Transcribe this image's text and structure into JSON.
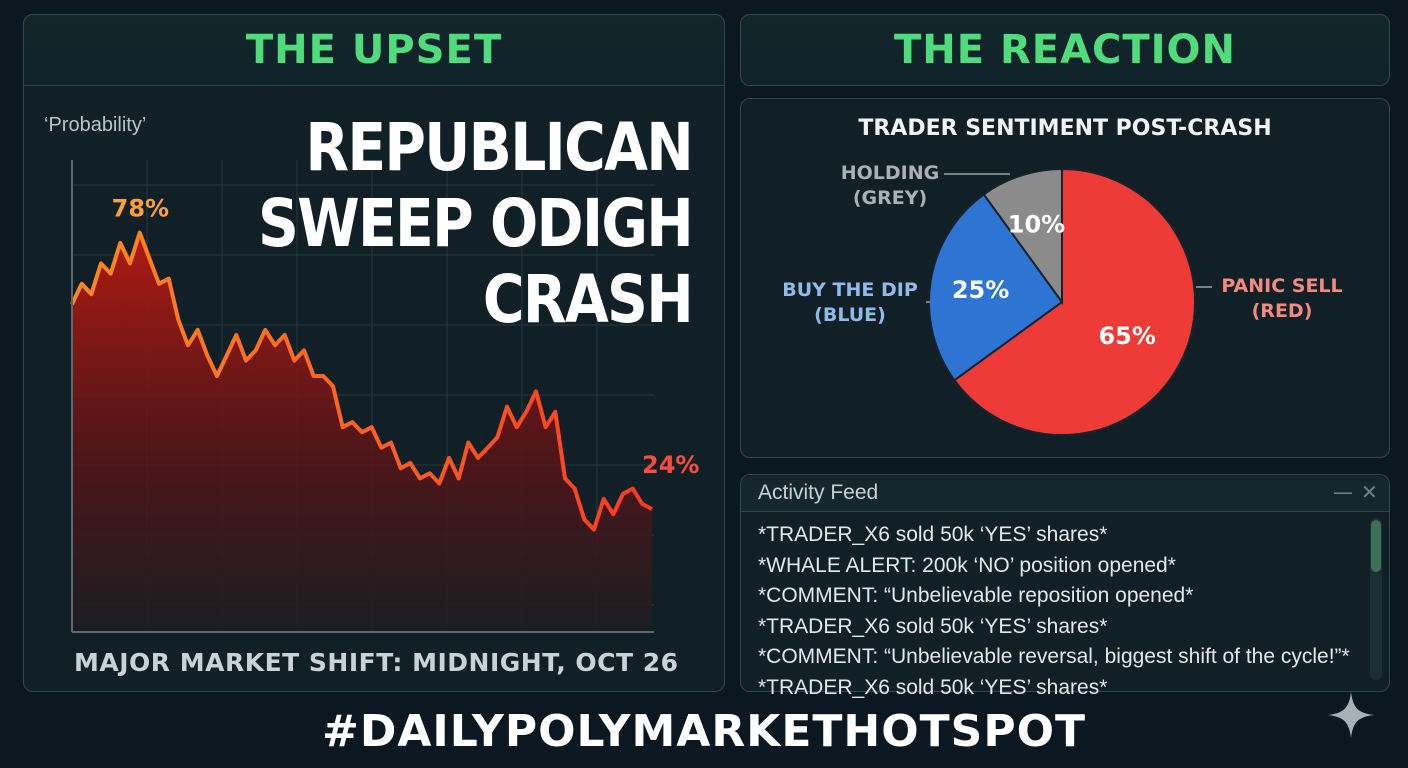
{
  "left_panel": {
    "title": "THE UPSET",
    "y_axis_label": "‘Probability’",
    "headline": [
      "REPUBLICAN",
      "SWEEP ODIGH",
      "CRASH"
    ],
    "footer": "MAJOR MARKET SHIFT: MIDNIGHT, OCT 26"
  },
  "right_panel": {
    "title": "THE REACTION"
  },
  "chart_data": [
    {
      "type": "area",
      "ylabel": "‘Probability’",
      "annotations": [
        {
          "label": "78%",
          "point": "peak"
        },
        {
          "label": "24%",
          "point": "end"
        }
      ],
      "grid": true,
      "ylim": [
        0,
        100
      ],
      "x": [
        0,
        1,
        2,
        3,
        4,
        5,
        6,
        7,
        8,
        9,
        10,
        11,
        12,
        13,
        14,
        15,
        16,
        17,
        18,
        19,
        20,
        21,
        22,
        23,
        24,
        25,
        26,
        27,
        28,
        29,
        30,
        31,
        32,
        33,
        34,
        35,
        36,
        37,
        38,
        39,
        40,
        41,
        42,
        43,
        44,
        45,
        46,
        47,
        48,
        49,
        50,
        51,
        52,
        53,
        54,
        55,
        56,
        57,
        58,
        59,
        60
      ],
      "values": [
        64,
        68,
        66,
        72,
        70,
        76,
        72,
        78,
        73,
        68,
        69,
        61,
        56,
        59,
        54,
        50,
        54,
        58,
        53,
        55,
        59,
        56,
        58,
        53,
        55,
        50,
        50,
        48,
        40,
        41,
        39,
        40,
        36,
        37,
        32,
        33,
        30,
        31,
        29,
        34,
        30,
        37,
        34,
        36,
        38,
        44,
        40,
        43,
        47,
        40,
        43,
        30,
        28,
        22,
        20,
        26,
        23,
        27,
        28,
        25,
        24
      ],
      "ymarks_note": ""
    },
    {
      "type": "pie",
      "title": "TRADER SENTIMENT POST-CRASH",
      "slices": [
        {
          "label": "PANIC SELL (RED)",
          "value": 65,
          "display": "65%",
          "color": "#ee3b38",
          "ext": [
            "PANIC SELL",
            "(RED)"
          ],
          "ext_color": "#f28a80"
        },
        {
          "label": "BUY THE DIP (BLUE)",
          "value": 25,
          "display": "25%",
          "color": "#2e74d2",
          "ext": [
            "BUY THE DIP",
            "(BLUE)"
          ],
          "ext_color": "#8ebbe8"
        },
        {
          "label": "HOLDING (GREY)",
          "value": 10,
          "display": "10%",
          "color": "#8b8b8b",
          "ext": [
            "HOLDING",
            "(GREY)"
          ],
          "ext_color": "#a9b1b4"
        }
      ]
    }
  ],
  "activity_feed": {
    "title": "Activity Feed",
    "minimize_icon": "—",
    "close_icon": "✕",
    "items": [
      "*TRADER_X6 sold 50k ‘YES’ shares*",
      "*WHALE ALERT: 200k ‘NO’ position opened*",
      "*COMMENT: “Unbelievable reposition opened*",
      "*TRADER_X6 sold 50k ‘YES’ shares*",
      "*COMMENT: “Unbelievable reversal, biggest shift of the cycle!”*",
      "*TRADER_X6 sold 50k ‘YES’ shares*"
    ]
  },
  "hashtag": "#DAILYPOLYMARKETHOTSPOT",
  "colors": {
    "accent_green": "#4fdc7d",
    "line_orange": "#ff5a1e",
    "peak_label": "#ffa033",
    "end_label": "#ff4c3c",
    "background": "#0c1821"
  },
  "icons": {
    "sparkle": "sparkle-icon"
  }
}
